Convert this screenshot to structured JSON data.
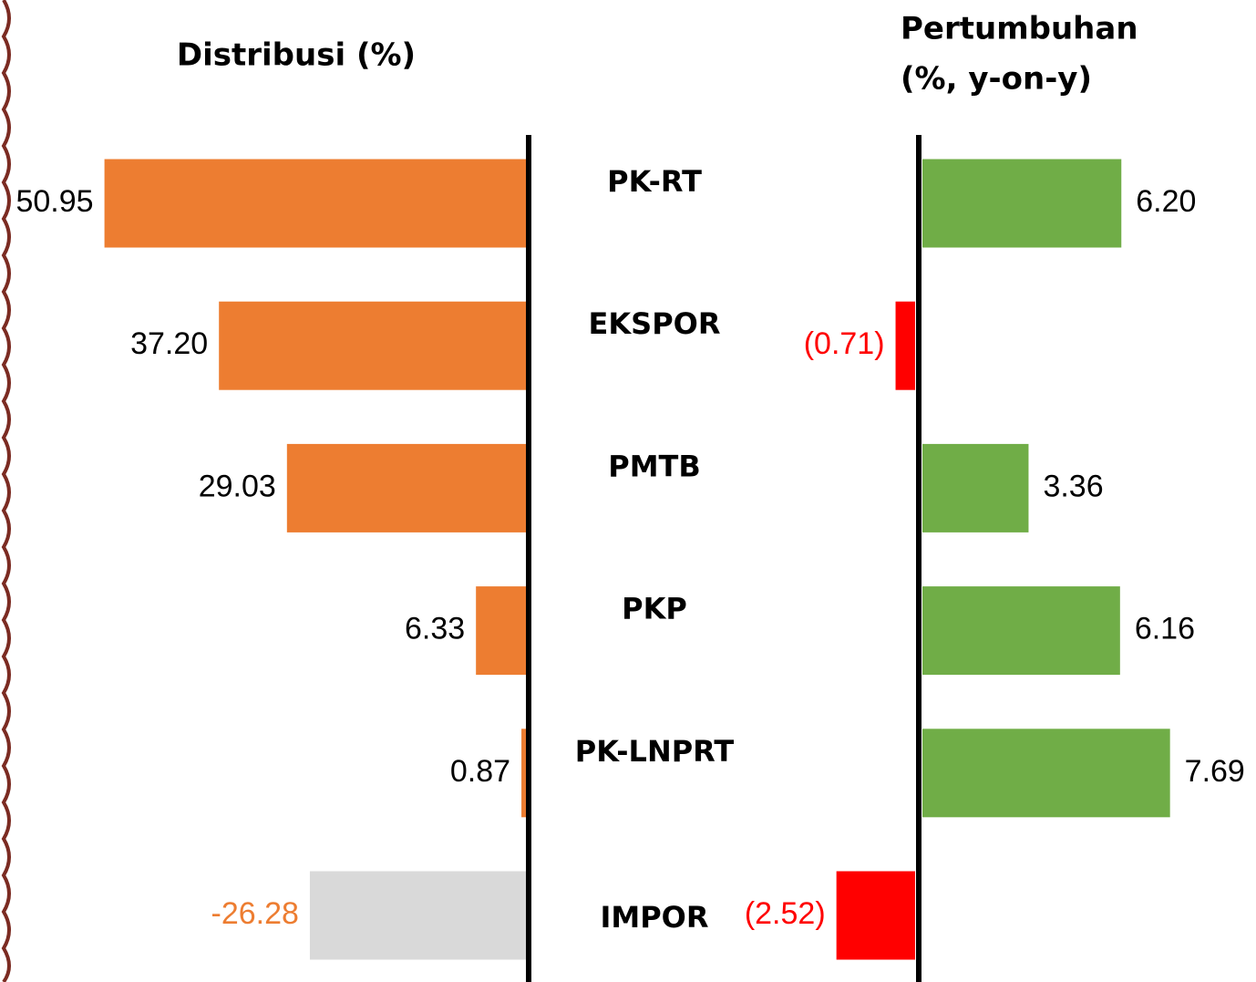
{
  "chart_data": [
    {
      "type": "bar",
      "title": "Distribusi (%)",
      "categories": [
        "PK-RT",
        "EKSPOR",
        "PMTB",
        "PKP",
        "PK-LNPRT",
        "IMPOR"
      ],
      "values": [
        50.95,
        37.2,
        29.03,
        6.33,
        0.87,
        -26.28
      ],
      "value_labels": [
        "50.95",
        "37.20",
        "29.03",
        "6.33",
        "0.87",
        "-26.28"
      ],
      "colors": [
        "#ed7d31",
        "#ed7d31",
        "#ed7d31",
        "#ed7d31",
        "#ed7d31",
        "#d9d9d9"
      ],
      "label_colors": [
        "#000000",
        "#000000",
        "#000000",
        "#000000",
        "#000000",
        "#ed7d31"
      ],
      "xlim": [
        0,
        52
      ],
      "direction": "left"
    },
    {
      "type": "bar",
      "title": [
        "Pertumbuhan",
        "(%, y-on-y)"
      ],
      "values": [
        6.2,
        -0.71,
        3.36,
        6.16,
        7.69,
        -2.52
      ],
      "value_labels": [
        "6.20",
        "(0.71)",
        "3.36",
        "6.16",
        "7.69",
        "(2.52)"
      ],
      "colors": [
        "#70ad47",
        "#ff0000",
        "#70ad47",
        "#70ad47",
        "#70ad47",
        "#ff0000"
      ],
      "label_colors": [
        "#000000",
        "#ff0000",
        "#000000",
        "#000000",
        "#000000",
        "#ff0000"
      ],
      "xlim": [
        -2.6,
        8.0
      ],
      "direction": "right"
    }
  ]
}
